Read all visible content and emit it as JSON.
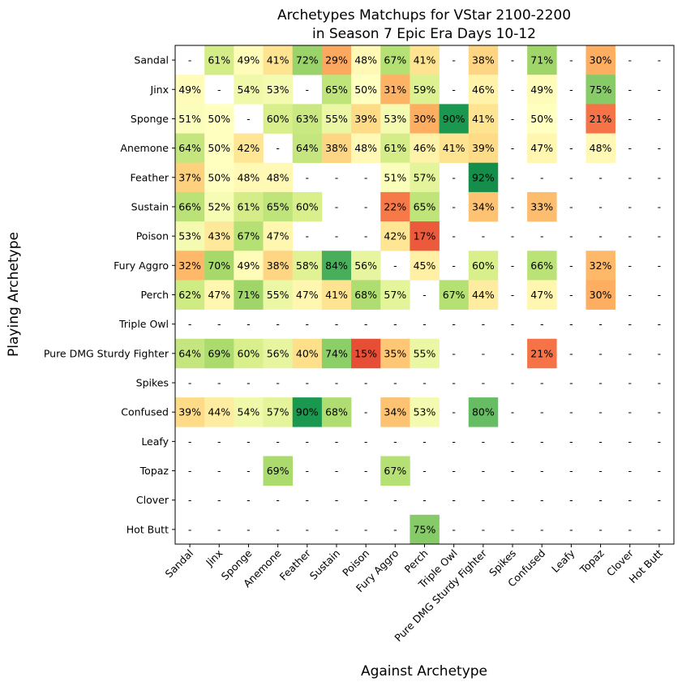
{
  "chart_data": {
    "type": "heatmap",
    "title": [
      "Archetypes Matchups for VStar 2100-2200",
      "in Season 7 Epic Era Days 10-12"
    ],
    "xlabel": "Against Archetype",
    "ylabel": "Playing Archetype",
    "colormap": "RdYlGn",
    "vmin": 0,
    "vmax": 100,
    "x_categories": [
      "Sandal",
      "Jinx",
      "Sponge",
      "Anemone",
      "Feather",
      "Sustain",
      "Poison",
      "Fury Aggro",
      "Perch",
      "Triple Owl",
      "Pure DMG Sturdy Fighter",
      "Spikes",
      "Confused",
      "Leafy",
      "Topaz",
      "Clover",
      "Hot Butt"
    ],
    "y_categories": [
      "Sandal",
      "Jinx",
      "Sponge",
      "Anemone",
      "Feather",
      "Sustain",
      "Poison",
      "Fury Aggro",
      "Perch",
      "Triple Owl",
      "Pure DMG Sturdy Fighter",
      "Spikes",
      "Confused",
      "Leafy",
      "Topaz",
      "Clover",
      "Hot Butt"
    ],
    "values": [
      [
        null,
        61,
        49,
        41,
        72,
        29,
        48,
        67,
        41,
        null,
        38,
        null,
        71,
        null,
        30,
        null,
        null
      ],
      [
        49,
        null,
        54,
        53,
        null,
        65,
        50,
        31,
        59,
        null,
        46,
        null,
        49,
        null,
        75,
        null,
        null
      ],
      [
        51,
        50,
        null,
        60,
        63,
        55,
        39,
        53,
        30,
        90,
        41,
        null,
        50,
        null,
        21,
        null,
        null
      ],
      [
        64,
        50,
        42,
        null,
        64,
        38,
        48,
        61,
        46,
        41,
        39,
        null,
        47,
        null,
        48,
        null,
        null
      ],
      [
        37,
        50,
        48,
        48,
        null,
        null,
        null,
        51,
        57,
        null,
        92,
        null,
        null,
        null,
        null,
        null,
        null
      ],
      [
        66,
        52,
        61,
        65,
        60,
        null,
        null,
        22,
        65,
        null,
        34,
        null,
        33,
        null,
        null,
        null,
        null
      ],
      [
        53,
        43,
        67,
        47,
        null,
        null,
        null,
        42,
        17,
        null,
        null,
        null,
        null,
        null,
        null,
        null,
        null
      ],
      [
        32,
        70,
        49,
        38,
        58,
        84,
        56,
        null,
        45,
        null,
        60,
        null,
        66,
        null,
        32,
        null,
        null
      ],
      [
        62,
        47,
        71,
        55,
        47,
        41,
        68,
        57,
        null,
        67,
        44,
        null,
        47,
        null,
        30,
        null,
        null
      ],
      [
        null,
        null,
        null,
        null,
        null,
        null,
        null,
        null,
        null,
        null,
        null,
        null,
        null,
        null,
        null,
        null,
        null
      ],
      [
        64,
        69,
        60,
        56,
        40,
        74,
        15,
        35,
        55,
        null,
        null,
        null,
        21,
        null,
        null,
        null,
        null
      ],
      [
        null,
        null,
        null,
        null,
        null,
        null,
        null,
        null,
        null,
        null,
        null,
        null,
        null,
        null,
        null,
        null,
        null
      ],
      [
        39,
        44,
        54,
        57,
        90,
        68,
        null,
        34,
        53,
        null,
        80,
        null,
        null,
        null,
        null,
        null,
        null
      ],
      [
        null,
        null,
        null,
        null,
        null,
        null,
        null,
        null,
        null,
        null,
        null,
        null,
        null,
        null,
        null,
        null,
        null
      ],
      [
        null,
        null,
        null,
        69,
        null,
        null,
        null,
        67,
        null,
        null,
        null,
        null,
        null,
        null,
        null,
        null,
        null
      ],
      [
        null,
        null,
        null,
        null,
        null,
        null,
        null,
        null,
        null,
        null,
        null,
        null,
        null,
        null,
        null,
        null,
        null
      ],
      [
        null,
        null,
        null,
        null,
        null,
        null,
        null,
        null,
        75,
        null,
        null,
        null,
        null,
        null,
        null,
        null,
        null
      ]
    ],
    "missing_label": "-",
    "value_suffix": "%"
  }
}
